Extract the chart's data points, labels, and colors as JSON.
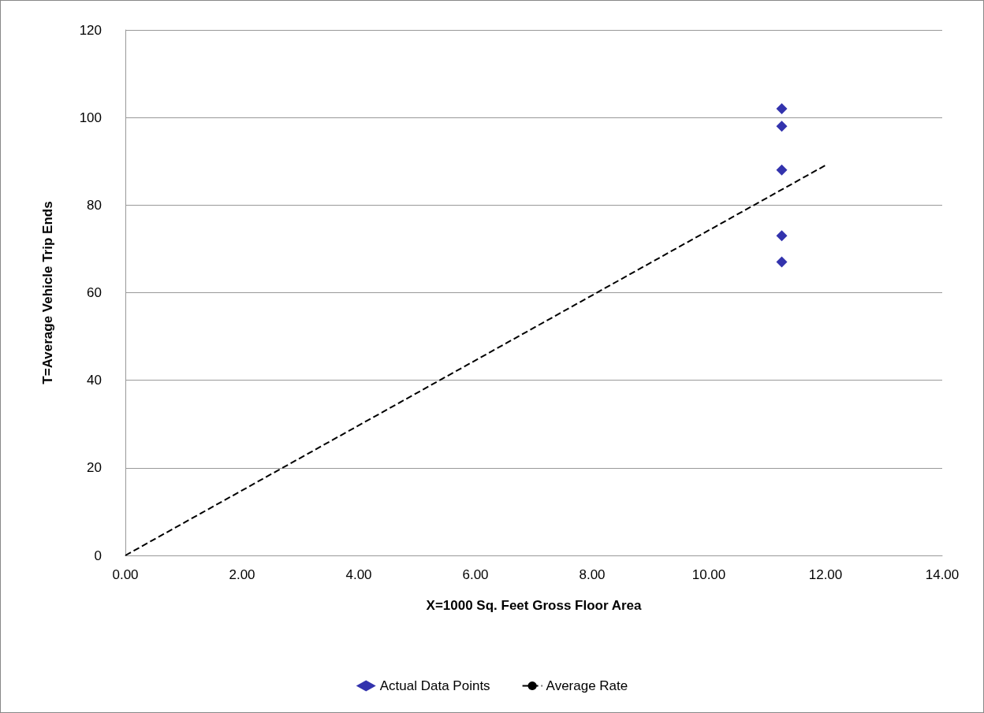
{
  "chart_data": {
    "type": "scatter",
    "xlabel": "X=1000 Sq. Feet Gross Floor Area",
    "ylabel": "T=Average Vehicle Trip Ends",
    "xlim": [
      0,
      14
    ],
    "xticks": [
      {
        "value": 0,
        "label": "0.00"
      },
      {
        "value": 2,
        "label": "2.00"
      },
      {
        "value": 4,
        "label": "4.00"
      },
      {
        "value": 6,
        "label": "6.00"
      },
      {
        "value": 8,
        "label": "8.00"
      },
      {
        "value": 10,
        "label": "10.00"
      },
      {
        "value": 12,
        "label": "12.00"
      },
      {
        "value": 14,
        "label": "14.00"
      }
    ],
    "ylim": [
      0,
      120
    ],
    "yticks": [
      0,
      20,
      40,
      60,
      80,
      100,
      120
    ],
    "grid": "y",
    "legend": "bottom",
    "series": [
      {
        "name": "Actual Data Points",
        "color": "#000099",
        "marker": "diamond",
        "x": [
          11.25,
          11.25,
          11.25,
          11.25,
          11.25
        ],
        "values": [
          102,
          98,
          88,
          73,
          67
        ]
      },
      {
        "name": "Average Rate",
        "type": "line",
        "color": "#000000",
        "line_style": "dashed",
        "marker": "none",
        "x": [
          0,
          12
        ],
        "values": [
          0,
          89.1
        ]
      }
    ]
  }
}
